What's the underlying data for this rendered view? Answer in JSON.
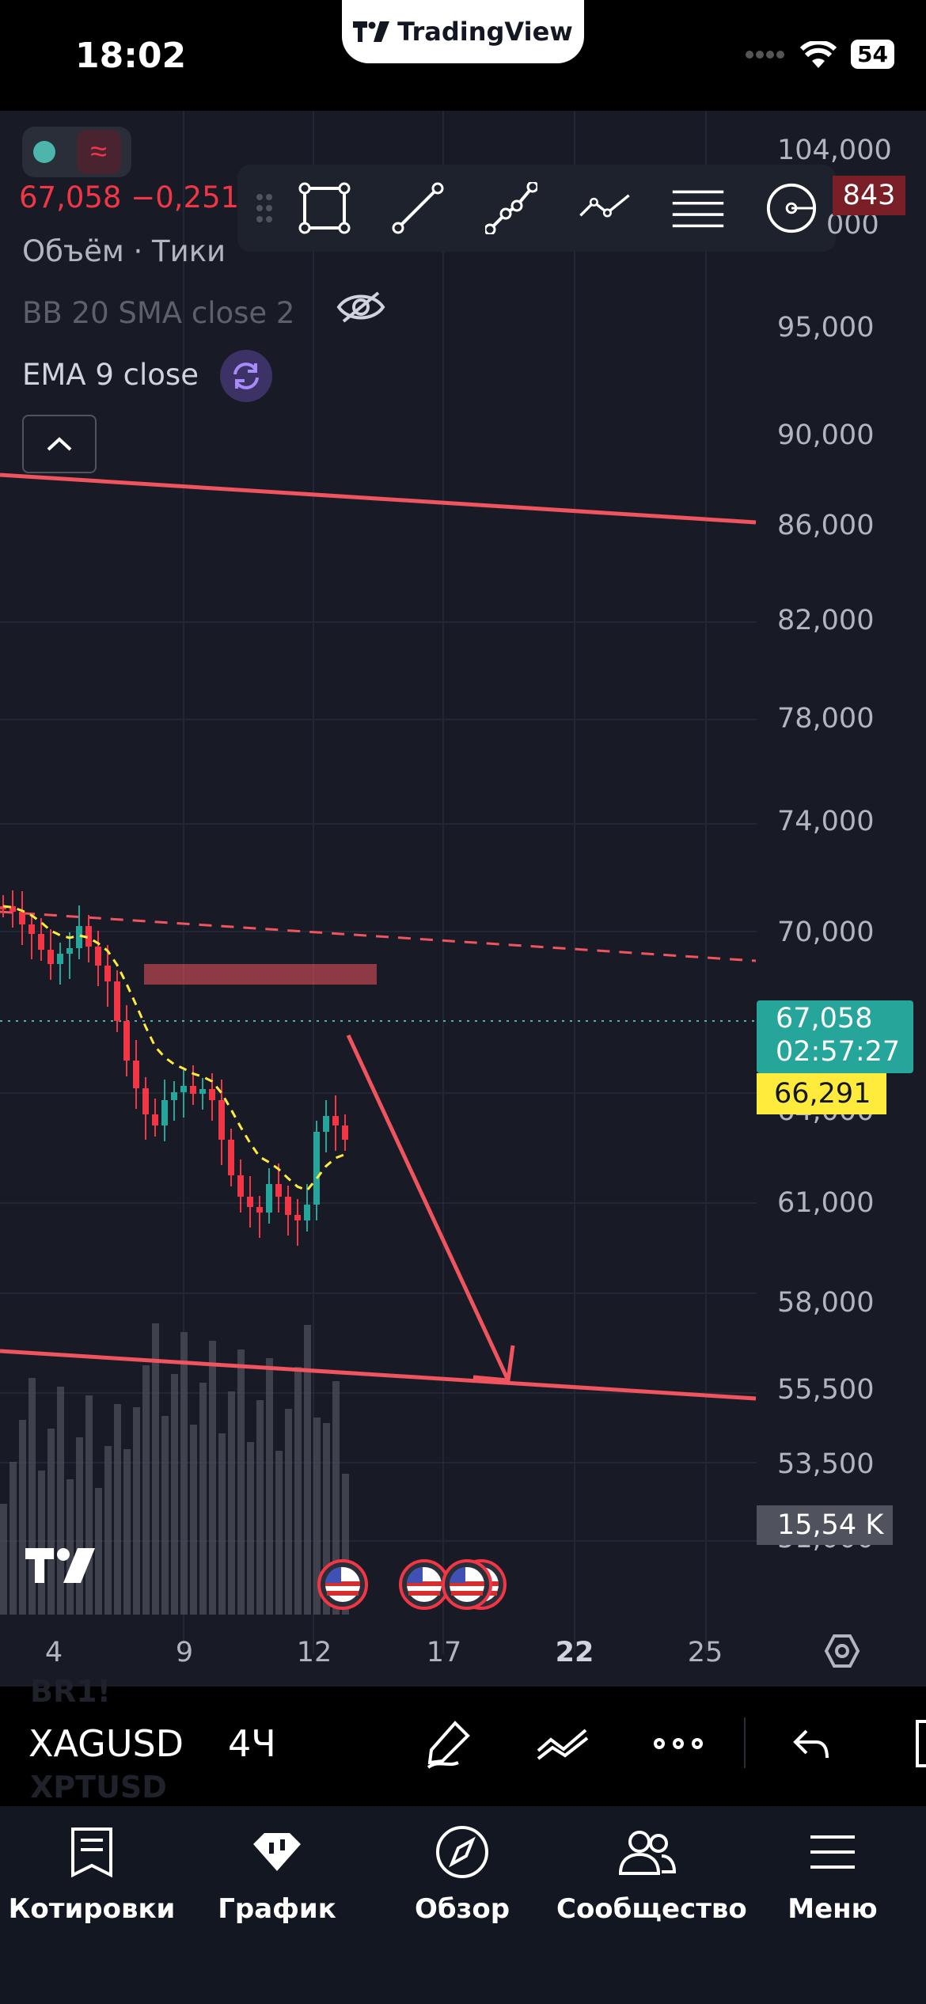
{
  "status_bar": {
    "time": "18:02",
    "app_pill": "TradingView",
    "battery": "54"
  },
  "legend": {
    "price": "67,058",
    "change": "−0,251",
    "volume": "Объём · Тики",
    "bollinger": "BB 20 SMA close 2",
    "ema": "EMA 9 close"
  },
  "draw_toolbar": {
    "tools": [
      "rectangle-tool",
      "trend-line-tool",
      "path-tool",
      "polyline-tool",
      "fib-levels-tool",
      "circle-tool"
    ]
  },
  "price_axis": [
    "104,000",
    "95,000",
    "90,000",
    "86,000",
    "82,000",
    "78,000",
    "74,000",
    "70,000",
    "61,000",
    "58,000",
    "55,500",
    "53,500"
  ],
  "price_axis_partial": [
    "000",
    "64,000",
    "51,000"
  ],
  "price_tags": {
    "top_tag": "843",
    "last_price": "67,058",
    "countdown": "02:57:27",
    "ema_value": "66,291",
    "volume_value": "15,54 K"
  },
  "time_axis": [
    "4",
    "9",
    "12",
    "17",
    "22",
    "25"
  ],
  "bottom_toolbar": {
    "symbol": "XAGUSD",
    "interval": "4Ч",
    "watchlist_above": "BR1!",
    "watchlist_below": "XPTUSD"
  },
  "tabs": [
    {
      "label": "Котировки",
      "icon": "list-icon"
    },
    {
      "label": "График",
      "icon": "chart-icon"
    },
    {
      "label": "Обзор",
      "icon": "compass-icon"
    },
    {
      "label": "Сообщество",
      "icon": "people-icon"
    },
    {
      "label": "Меню",
      "icon": "hamburger-icon"
    }
  ],
  "colors": {
    "up": "#26a69a",
    "down": "#f23645",
    "ema": "#ffeb3b",
    "background": "#181b26",
    "drawing": "#f0545e"
  }
}
